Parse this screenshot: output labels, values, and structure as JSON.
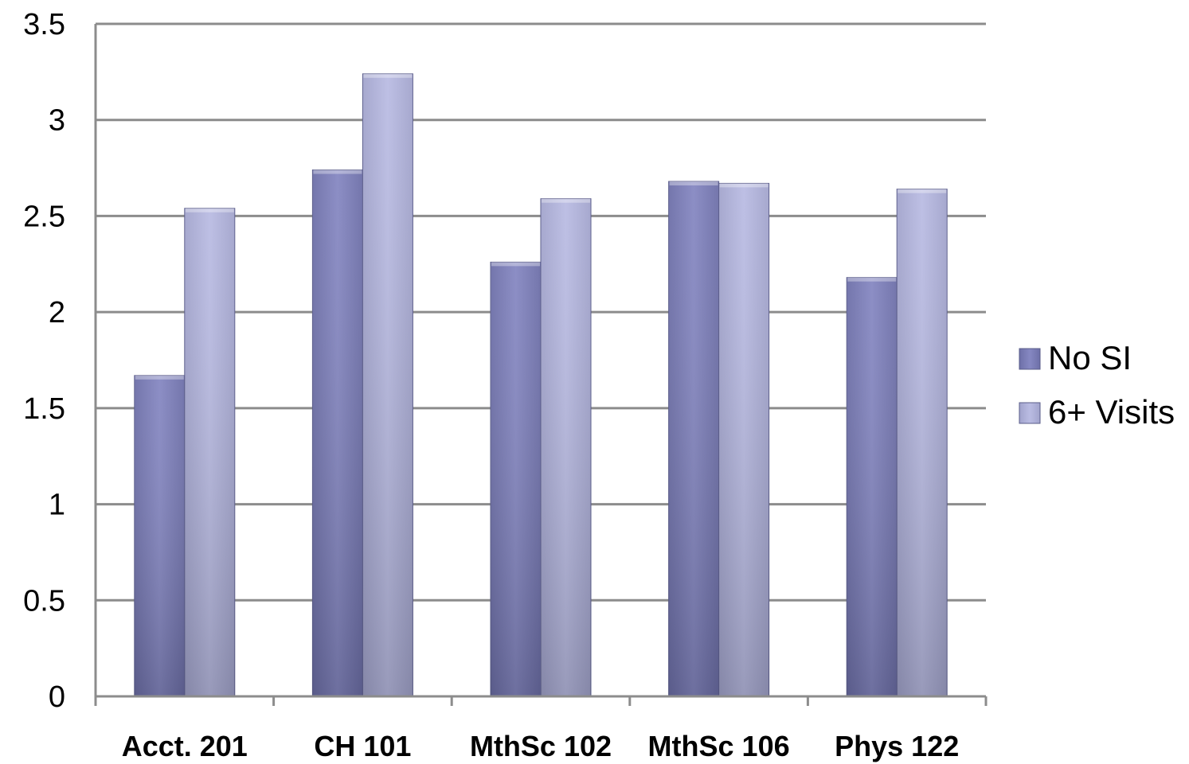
{
  "chart_data": {
    "type": "bar",
    "title": "",
    "xlabel": "",
    "ylabel": "",
    "categories": [
      "Acct. 201",
      "CH 101",
      "MthSc 102",
      "MthSc 106",
      "Phys 122"
    ],
    "series": [
      {
        "name": "No SI",
        "values": [
          1.67,
          2.74,
          2.26,
          2.68,
          2.18
        ],
        "color": "#7e80ba"
      },
      {
        "name": "6+ Visits",
        "values": [
          2.54,
          3.24,
          2.59,
          2.67,
          2.64
        ],
        "color": "#b3b5dc"
      }
    ],
    "ylim": [
      0,
      3.5
    ],
    "yticks": [
      "0",
      "0.5",
      "1",
      "1.5",
      "2",
      "2.5",
      "3",
      "3.5"
    ],
    "grid": true,
    "legend_position": "right",
    "colors": {
      "gridline": "#8c8c8c",
      "axis": "#8c8c8c"
    }
  }
}
